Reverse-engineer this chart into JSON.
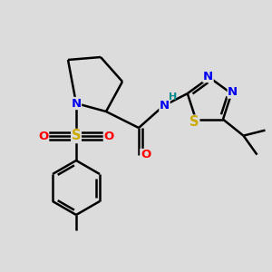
{
  "bg_color": "#dcdcdc",
  "bond_color": "#000000",
  "bond_width": 1.8,
  "atom_colors": {
    "N": "#0000ee",
    "O": "#ff0000",
    "S_thio": "#ccaa00",
    "S_sul": "#ccaa00",
    "H": "#008888",
    "C": "#000000"
  },
  "font_size": 9.5
}
